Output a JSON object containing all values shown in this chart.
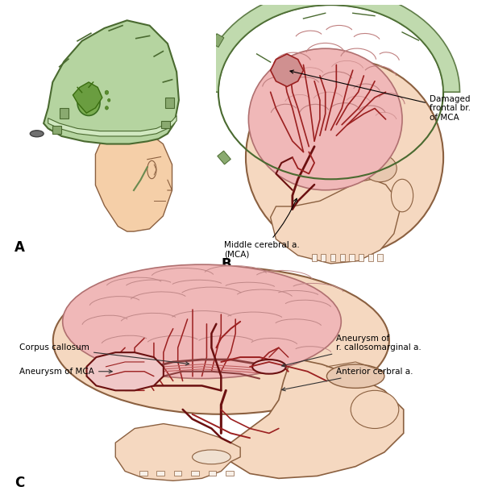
{
  "background_color": "#ffffff",
  "helmet_color": "#b5d4a0",
  "helmet_dark": "#8aaa70",
  "helmet_edge": "#4a6a30",
  "helmet_band": "#d0e8c0",
  "skin_color": "#f5cfa8",
  "skull_color": "#f5d8c0",
  "skull_edge": "#8b6040",
  "brain_color": "#f0b8b8",
  "brain_edge": "#c07070",
  "vessel_dark": "#6b1010",
  "vessel_mid": "#9b2020",
  "vessel_light": "#c06060",
  "gyri_color": "#d09090",
  "panel_A_label": "A",
  "panel_B_label": "B",
  "panel_C_label": "C",
  "font_size_label": 12,
  "font_size_annot": 7.5
}
